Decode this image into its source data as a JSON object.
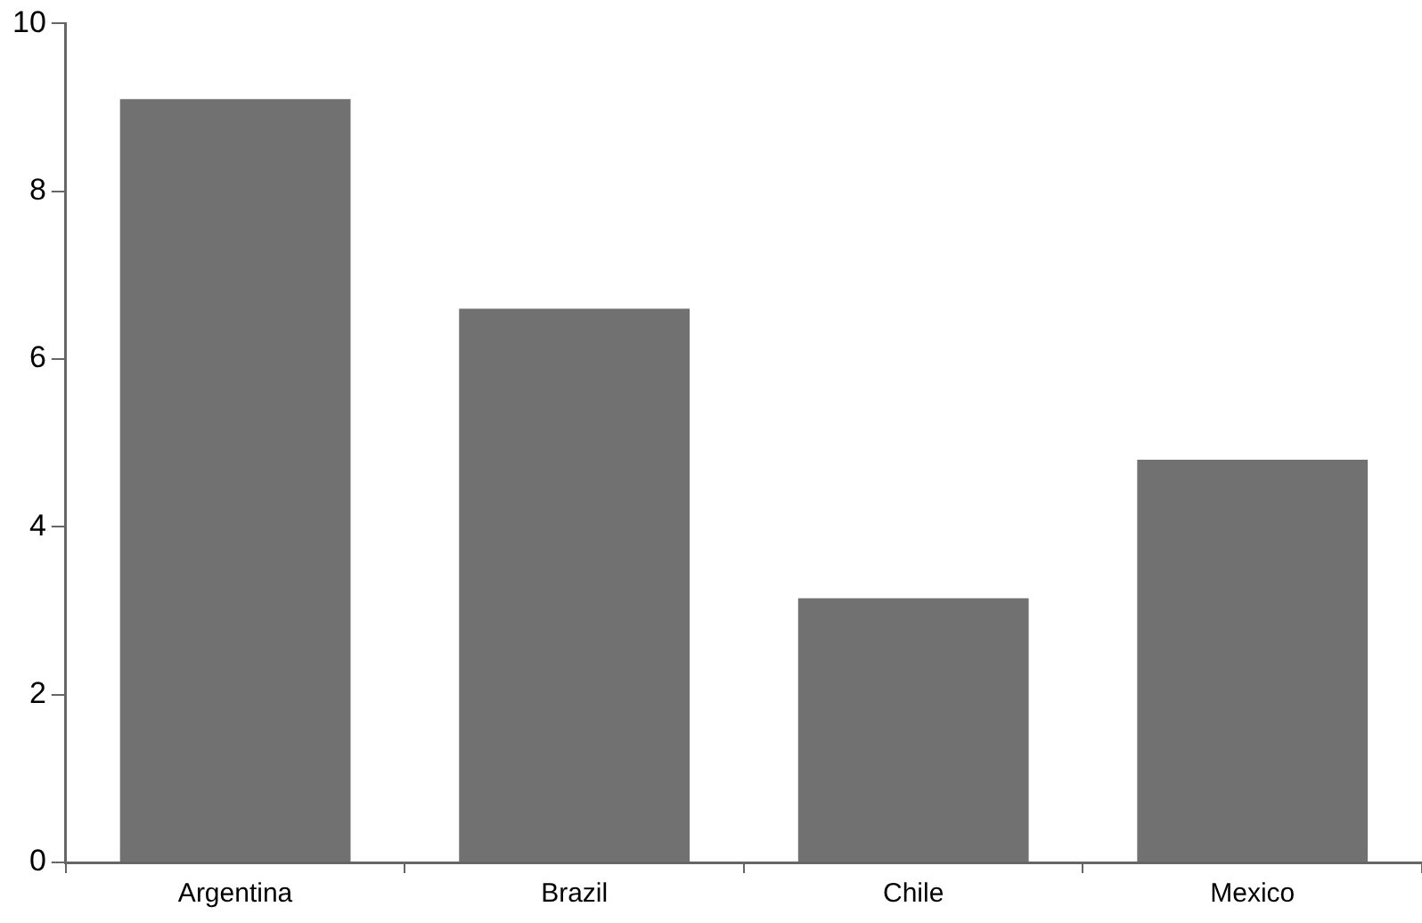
{
  "chart_data": {
    "type": "bar",
    "categories": [
      "Argentina",
      "Brazil",
      "Chile",
      "Mexico"
    ],
    "values": [
      9.1,
      6.6,
      3.15,
      4.8
    ],
    "color": "#717171",
    "ylim": [
      0,
      10
    ],
    "yticks": [
      0,
      2,
      4,
      6,
      8,
      10
    ],
    "grid": false,
    "legend": false
  }
}
